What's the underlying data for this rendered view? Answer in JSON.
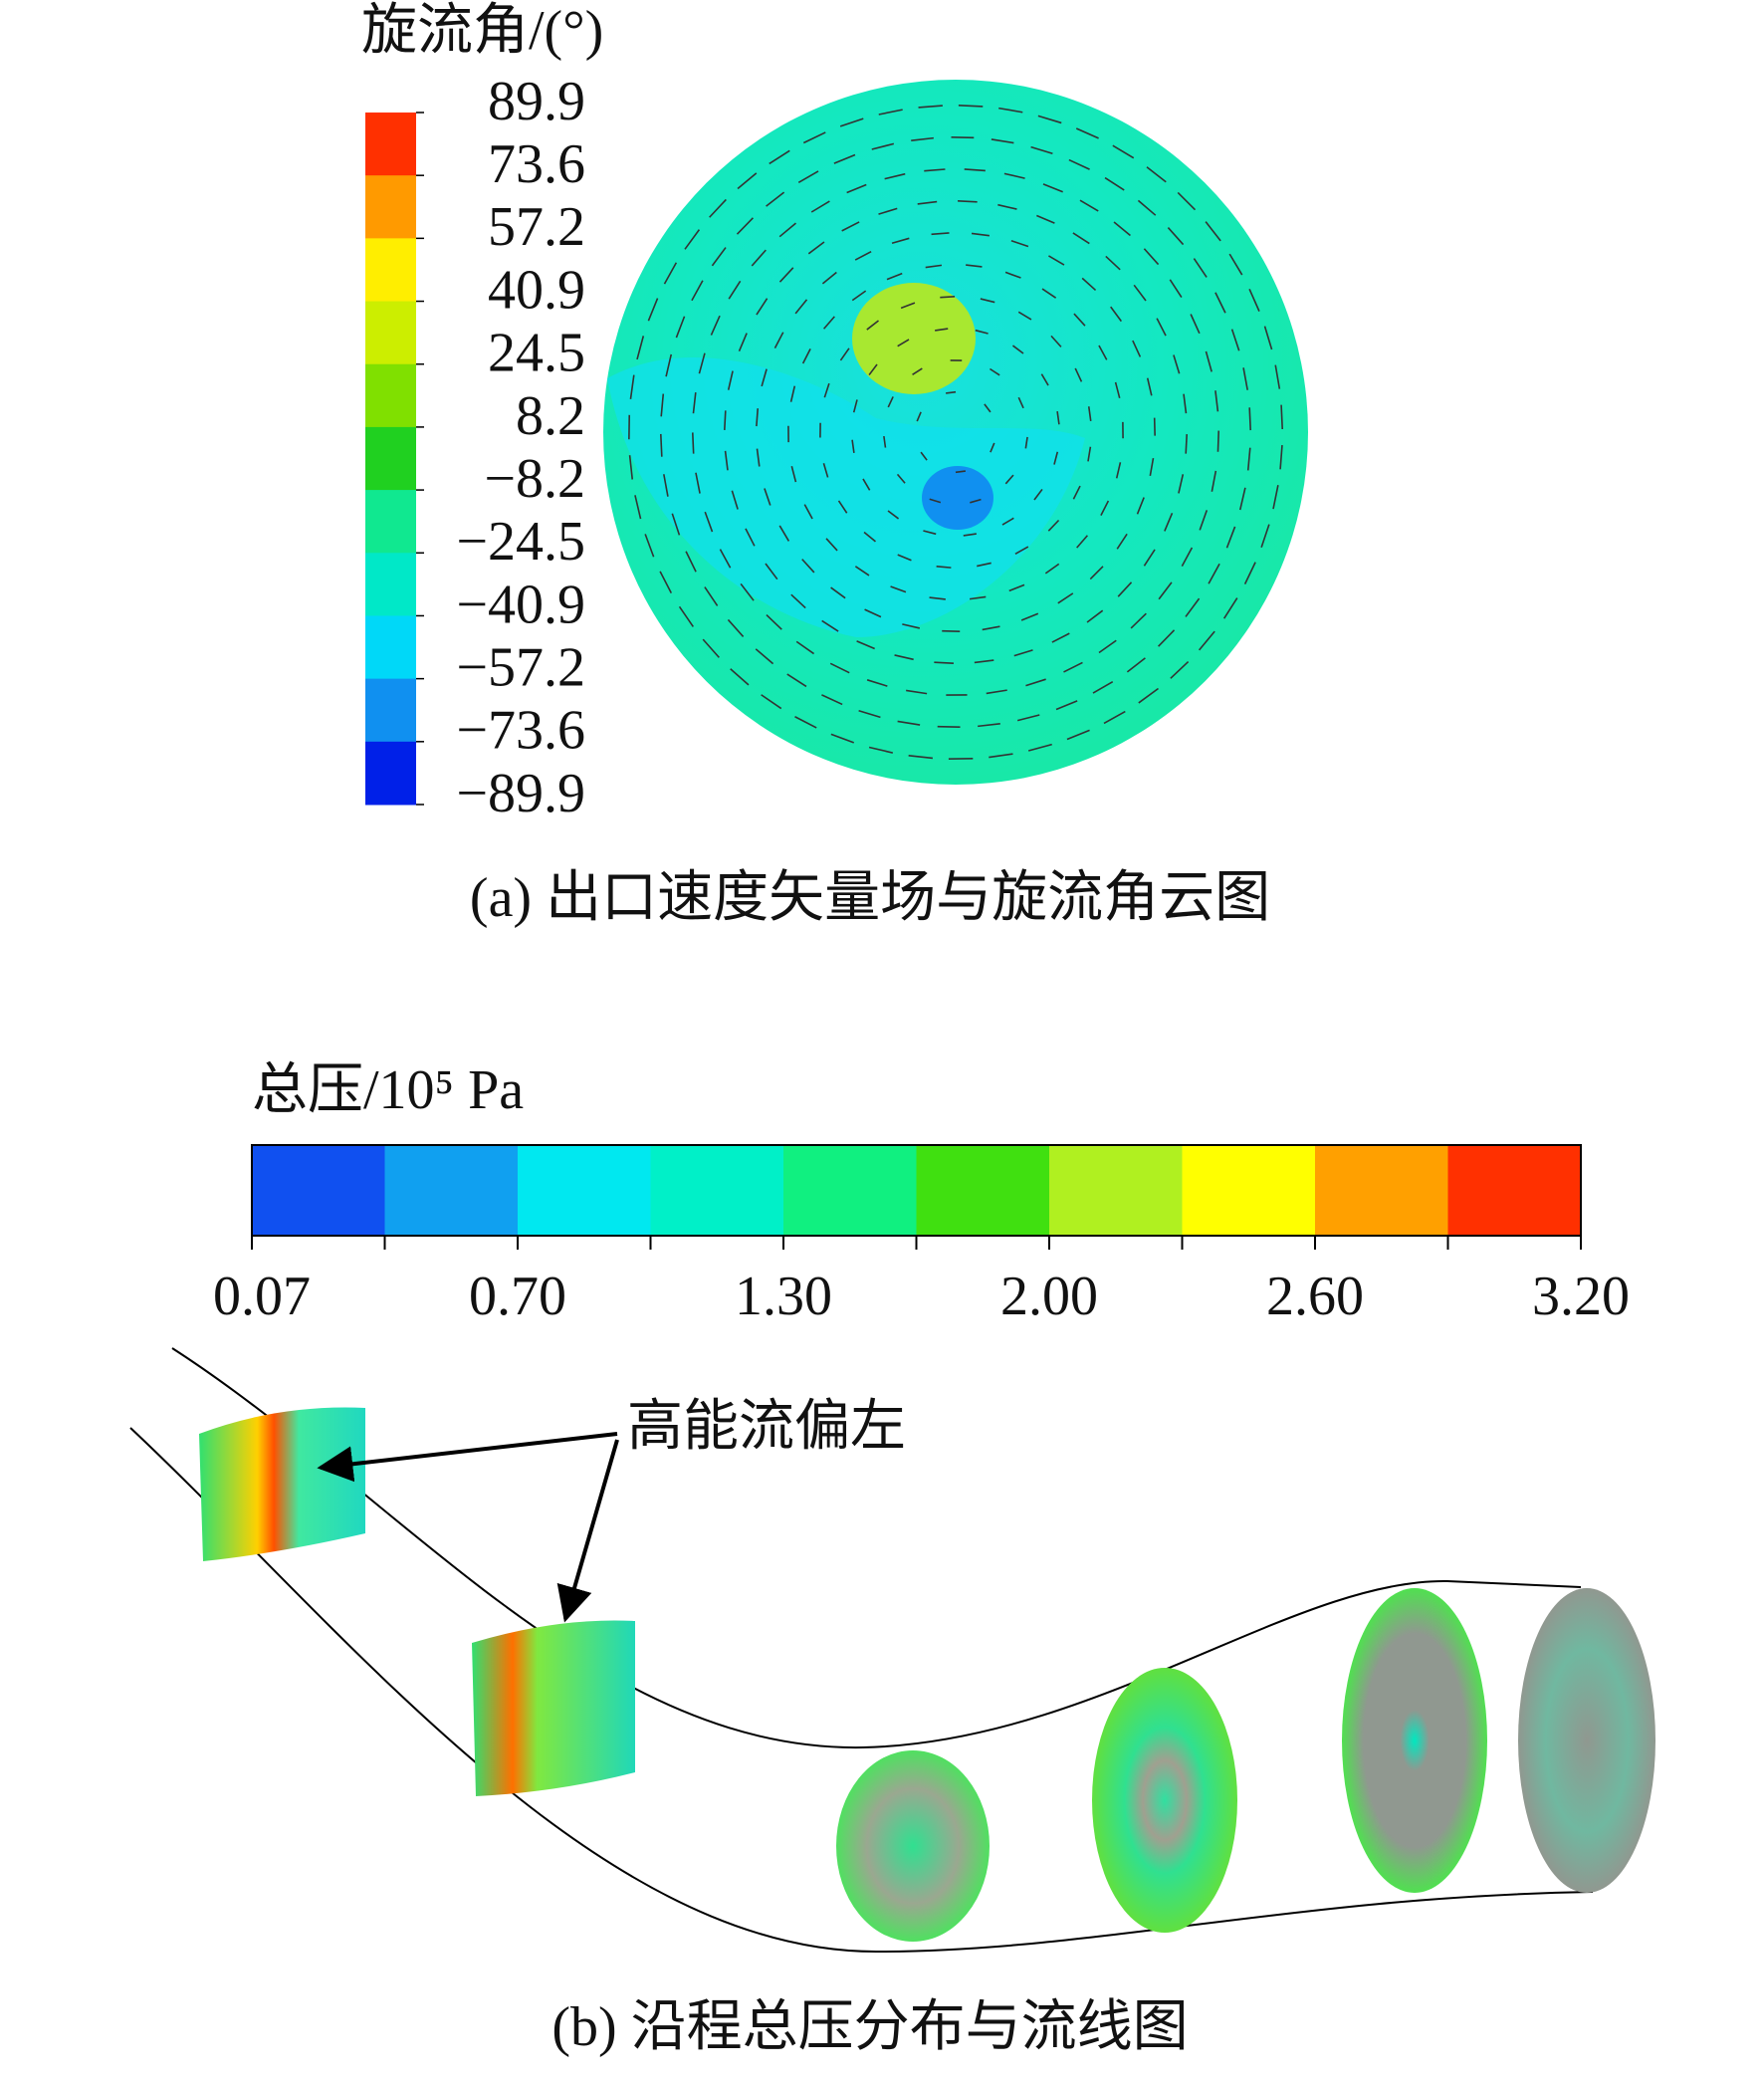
{
  "panel_a": {
    "legend": {
      "title": "旋流角/(°)",
      "ticks": [
        "89.9",
        "73.6",
        "57.2",
        "40.9",
        "24.5",
        "8.2",
        "−8.2",
        "−24.5",
        "−40.9",
        "−57.2",
        "−73.6",
        "−89.9"
      ]
    },
    "caption": "(a) 出口速度矢量场与旋流角云图"
  },
  "panel_b": {
    "legend": {
      "title": "总压/10⁵ Pa",
      "ticks": [
        "0.07",
        "0.70",
        "1.30",
        "2.00",
        "2.60",
        "3.20"
      ]
    },
    "annotation": "高能流偏左",
    "caption": "(b) 沿程总压分布与流线图"
  }
}
